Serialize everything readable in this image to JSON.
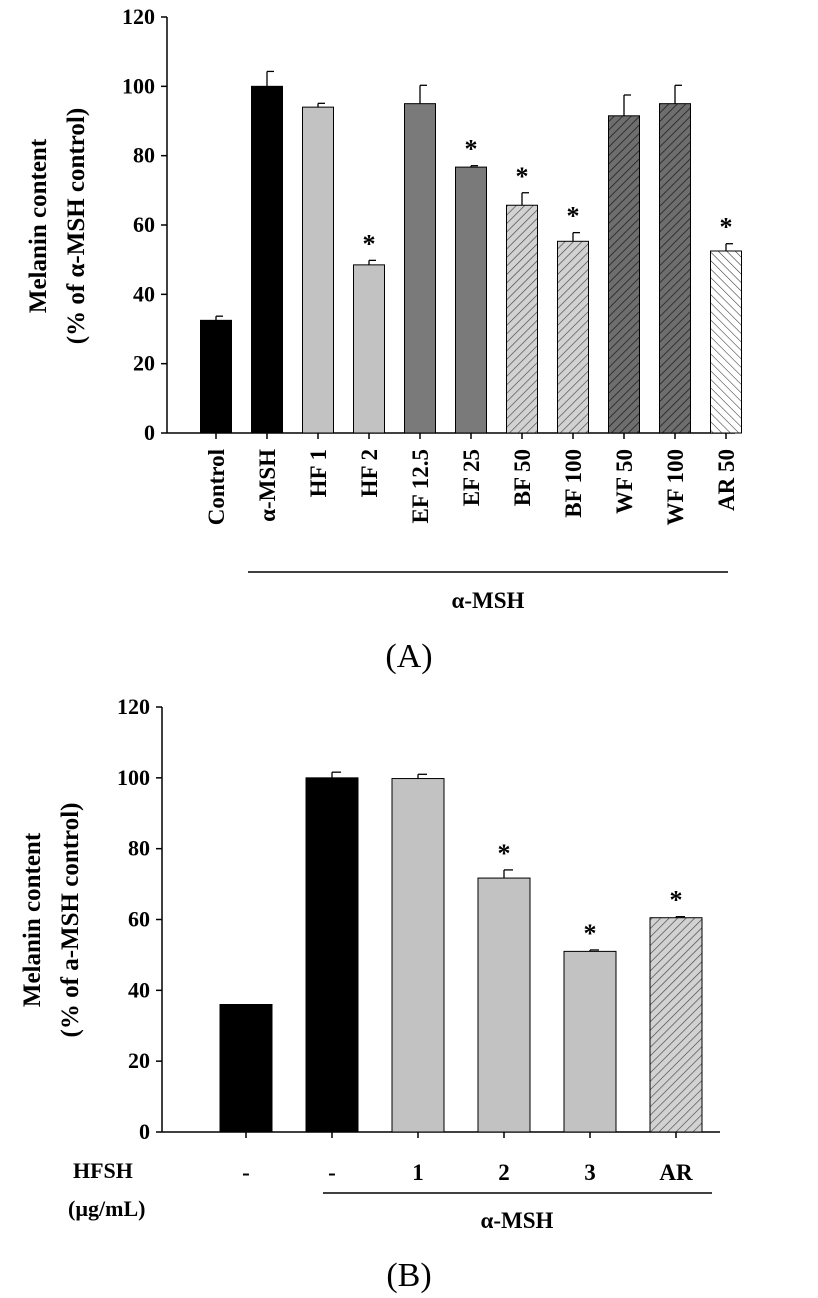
{
  "chart_data": [
    {
      "type": "bar",
      "panel_label": "(A)",
      "ylabel_lines": [
        "Melanin content",
        "(% of α-MSH control)"
      ],
      "ylim": [
        0,
        120
      ],
      "yticks": [
        0,
        20,
        40,
        60,
        80,
        100,
        120
      ],
      "categories": [
        "Control",
        "α-MSH",
        "HF 1",
        "HF 2",
        "EF 12.5",
        "EF 25",
        "BF 50",
        "BF 100",
        "WF 50",
        "WF 100",
        "AR 50"
      ],
      "values": [
        32.5,
        100,
        94,
        48.5,
        95,
        76.7,
        65.7,
        55.3,
        91.5,
        95,
        52.5
      ],
      "errors": [
        1.2,
        4.3,
        1.1,
        1.3,
        5.3,
        0.4,
        3.6,
        2.5,
        6.0,
        5.3,
        2.1
      ],
      "significant": [
        false,
        false,
        false,
        true,
        false,
        true,
        true,
        true,
        false,
        false,
        true
      ],
      "star_symbol": "*",
      "fills": [
        "black",
        "black",
        "#c2c2c2",
        "#c2c2c2",
        "#7a7a7a",
        "#7a7a7a",
        "hatch-light",
        "hatch-light",
        "hatch-dark",
        "hatch-dark",
        "hatch-white"
      ],
      "bracket_label": "α-MSH",
      "grid": false
    },
    {
      "type": "bar",
      "panel_label": "(B)",
      "ylabel_lines": [
        "Melanin content",
        "(% of a-MSH control)"
      ],
      "ylim": [
        0,
        120
      ],
      "yticks": [
        0,
        20,
        40,
        60,
        80,
        100,
        120
      ],
      "row_label_lines": [
        "HFSH",
        "(µg/mL)"
      ],
      "categories": [
        "-",
        "-",
        "1",
        "2",
        "3",
        "AR"
      ],
      "values": [
        36,
        100,
        99.8,
        71.7,
        51,
        60.5
      ],
      "errors": [
        0,
        1.6,
        1.2,
        2.3,
        0.4,
        0.3
      ],
      "significant": [
        false,
        false,
        false,
        true,
        true,
        true
      ],
      "star_symbol": "*",
      "fills": [
        "black",
        "black",
        "#c2c2c2",
        "#c2c2c2",
        "#c2c2c2",
        "hatch-light"
      ],
      "bracket_label": "α-MSH",
      "grid": false
    }
  ]
}
